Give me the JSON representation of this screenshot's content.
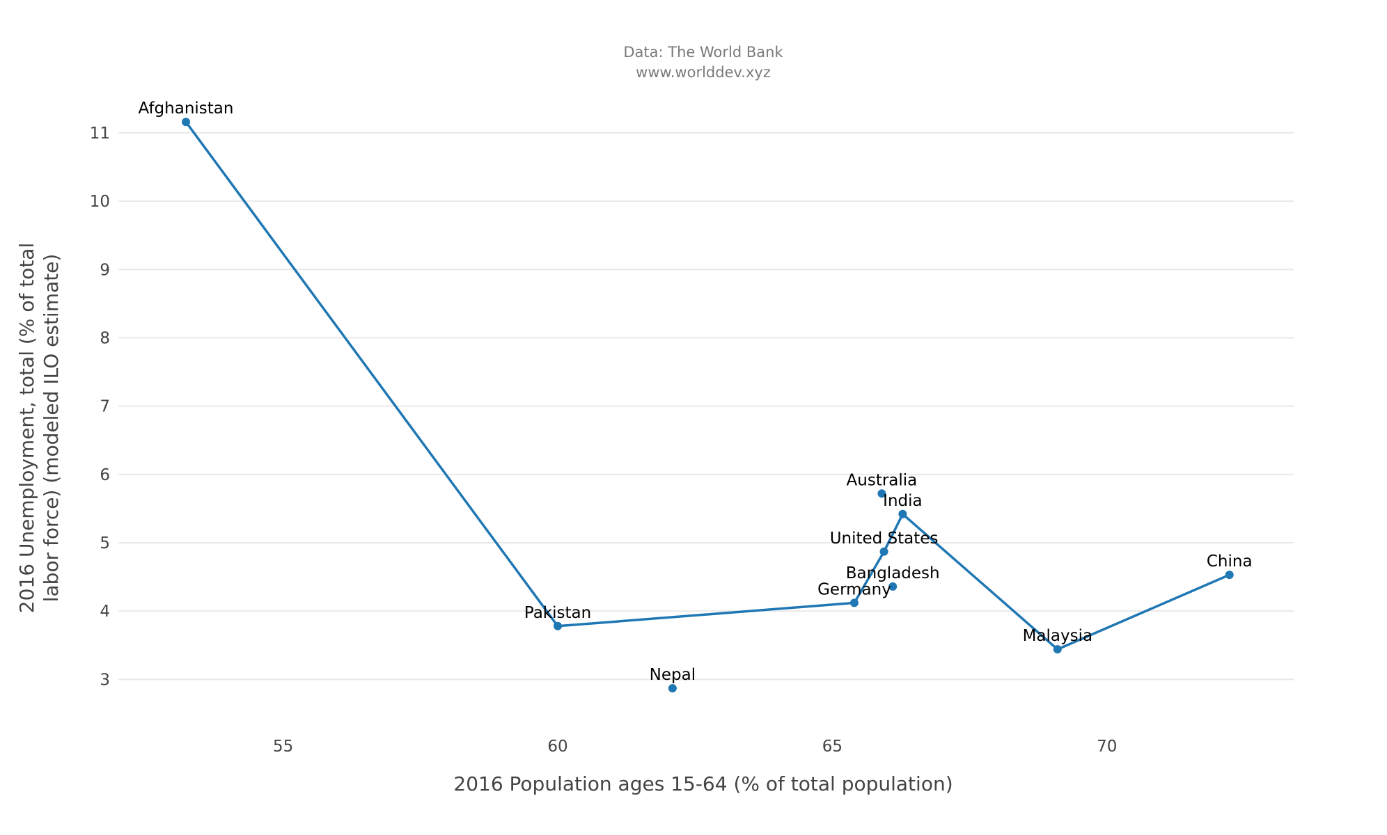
{
  "source": {
    "line1": "Data: The World Bank",
    "line2": "www.worlddev.xyz"
  },
  "chart_data": {
    "type": "scatter",
    "subtitle": "Data: The World Bank\nwww.worlddev.xyz",
    "xlabel": "2016 Population ages 15-64 (% of total population)",
    "ylabel_line1": "2016 Unemployment, total (% of total",
    "ylabel_line2": "labor force) (modeled ILO estimate)",
    "xlim": [
      52.0,
      73.4
    ],
    "ylim": [
      2.25,
      11.6
    ],
    "x_ticks": [
      55,
      60,
      65,
      70
    ],
    "y_ticks": [
      3,
      4,
      5,
      6,
      7,
      8,
      9,
      10,
      11
    ],
    "grid": "horizontal",
    "legend": "none",
    "marker_color": "#1f77b4",
    "line_color": "#1f77b4",
    "points": [
      {
        "label": "Afghanistan",
        "x": 53.23,
        "y": 11.16
      },
      {
        "label": "Pakistan",
        "x": 60.0,
        "y": 3.78
      },
      {
        "label": "Nepal",
        "x": 62.09,
        "y": 2.87
      },
      {
        "label": "Germany",
        "x": 65.4,
        "y": 4.12
      },
      {
        "label": "Australia",
        "x": 65.9,
        "y": 5.72
      },
      {
        "label": "United States",
        "x": 65.94,
        "y": 4.87
      },
      {
        "label": "Bangladesh",
        "x": 66.1,
        "y": 4.36
      },
      {
        "label": "India",
        "x": 66.28,
        "y": 5.42
      },
      {
        "label": "Malaysia",
        "x": 69.1,
        "y": 3.44
      },
      {
        "label": "China",
        "x": 72.23,
        "y": 4.53
      }
    ],
    "line_path": [
      "Afghanistan",
      "Pakistan",
      "Germany",
      "United States",
      "India",
      "Malaysia",
      "China"
    ]
  }
}
